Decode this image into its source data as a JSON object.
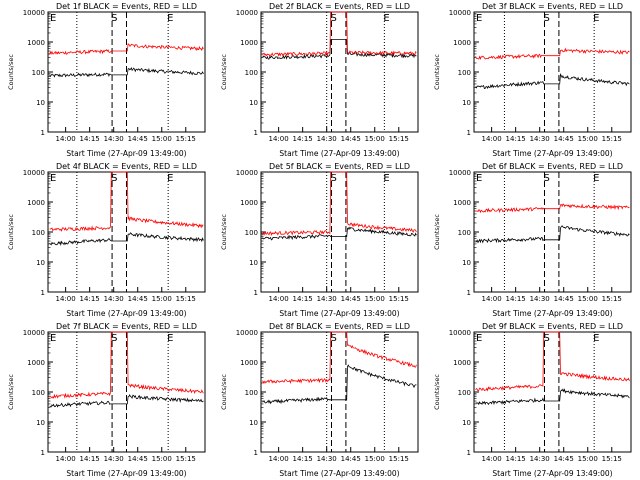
{
  "colors": {
    "events": "#000000",
    "lld": "#ff0000",
    "axis": "#000000",
    "background": "#ffffff"
  },
  "chart_data": [
    {
      "type": "line",
      "title": "Det 1f BLACK = Events, RED = LLD",
      "xlabel": "Start Time (27-Apr-09 13:49:00)",
      "ylabel": "Counts/sec",
      "xtick_labels": [
        "14:00",
        "14:15",
        "14:30",
        "14:45",
        "15:00",
        "15:15"
      ],
      "ytick_labels": [
        "1",
        "10",
        "100",
        "1000",
        "10000"
      ],
      "yscale": "log",
      "ylim": [
        1,
        10000
      ],
      "series": [
        {
          "name": "Events",
          "color": "#000000",
          "pre": [
            75,
            85
          ],
          "peak": 80,
          "post": [
            130,
            90
          ]
        },
        {
          "name": "LLD",
          "color": "#ff0000",
          "pre": [
            420,
            500
          ],
          "peak": 500,
          "post": [
            800,
            600
          ]
        }
      ],
      "markers": [
        "E",
        "S",
        "E"
      ],
      "dashed_lines": [
        "14:29",
        "14:38"
      ],
      "dotted_lines": [
        "14:07",
        "15:04"
      ]
    },
    {
      "type": "line",
      "title": "Det 2f BLACK = Events, RED = LLD",
      "xlabel": "Start Time (27-Apr-09 13:49:00)",
      "ylabel": "Counts/sec",
      "xtick_labels": [
        "14:00",
        "14:15",
        "14:30",
        "14:45",
        "15:00",
        "15:15"
      ],
      "ytick_labels": [
        "1",
        "10",
        "100",
        "1000",
        "10000"
      ],
      "yscale": "log",
      "ylim": [
        1,
        10000
      ],
      "series": [
        {
          "name": "Events",
          "color": "#000000",
          "pre": [
            300,
            350
          ],
          "peak": 1200,
          "post": [
            400,
            350
          ]
        },
        {
          "name": "LLD",
          "color": "#ff0000",
          "pre": [
            380,
            420
          ],
          "peak": 10000,
          "post": [
            450,
            420
          ]
        }
      ],
      "markers": [
        "S",
        "E"
      ],
      "dashed_lines": [
        "14:33",
        "14:42"
      ],
      "dotted_lines": [
        "14:30",
        "15:06"
      ]
    },
    {
      "type": "line",
      "title": "Det 3f BLACK = Events, RED = LLD",
      "xlabel": "Start Time (27-Apr-09 13:49:00)",
      "ylabel": "Counts/sec",
      "xtick_labels": [
        "14:00",
        "14:15",
        "14:30",
        "14:45",
        "15:00",
        "15:15"
      ],
      "ytick_labels": [
        "1",
        "10",
        "100",
        "1000",
        "10000"
      ],
      "yscale": "log",
      "ylim": [
        1,
        10000
      ],
      "series": [
        {
          "name": "Events",
          "color": "#000000",
          "pre": [
            30,
            45
          ],
          "peak": 40,
          "post": [
            80,
            40
          ]
        },
        {
          "name": "LLD",
          "color": "#ff0000",
          "pre": [
            300,
            350
          ],
          "peak": 350,
          "post": [
            550,
            450
          ]
        }
      ],
      "markers": [
        "E",
        "S",
        "E"
      ],
      "dashed_lines": [
        "14:33",
        "14:42"
      ],
      "dotted_lines": [
        "14:08",
        "15:04"
      ]
    },
    {
      "type": "line",
      "title": "Det 4f BLACK = Events, RED = LLD",
      "xlabel": "Start Time (27-Apr-09 13:49:00)",
      "ylabel": "Counts/sec",
      "xtick_labels": [
        "14:00",
        "14:15",
        "14:30",
        "14:45",
        "15:00",
        "15:15"
      ],
      "ytick_labels": [
        "1",
        "10",
        "100",
        "1000",
        "10000"
      ],
      "yscale": "log",
      "ylim": [
        1,
        10000
      ],
      "series": [
        {
          "name": "Events",
          "color": "#000000",
          "pre": [
            40,
            55
          ],
          "peak": 50,
          "post": [
            90,
            55
          ]
        },
        {
          "name": "LLD",
          "color": "#ff0000",
          "pre": [
            120,
            140
          ],
          "peak": 10000,
          "post": [
            300,
            160
          ]
        }
      ],
      "markers": [
        "E",
        "S",
        "E"
      ],
      "dashed_lines": [
        "14:29",
        "14:38"
      ],
      "dotted_lines": [
        "14:07",
        "15:04"
      ]
    },
    {
      "type": "line",
      "title": "Det 5f BLACK = Events, RED = LLD",
      "xlabel": "Start Time (27-Apr-09 13:49:00)",
      "ylabel": "Counts/sec",
      "xtick_labels": [
        "14:00",
        "14:15",
        "14:30",
        "14:45",
        "15:00",
        "15:15"
      ],
      "ytick_labels": [
        "1",
        "10",
        "100",
        "1000",
        "10000"
      ],
      "yscale": "log",
      "ylim": [
        1,
        10000
      ],
      "series": [
        {
          "name": "Events",
          "color": "#000000",
          "pre": [
            60,
            75
          ],
          "peak": 70,
          "post": [
            140,
            80
          ]
        },
        {
          "name": "LLD",
          "color": "#ff0000",
          "pre": [
            90,
            100
          ],
          "peak": 10000,
          "post": [
            200,
            110
          ]
        }
      ],
      "markers": [
        "S",
        "E"
      ],
      "dashed_lines": [
        "14:33",
        "14:42"
      ],
      "dotted_lines": [
        "14:30",
        "15:06"
      ]
    },
    {
      "type": "line",
      "title": "Det 6f BLACK = Events, RED = LLD",
      "xlabel": "Start Time (27-Apr-09 13:49:00)",
      "ylabel": "Counts/sec",
      "xtick_labels": [
        "14:00",
        "14:15",
        "14:30",
        "14:45",
        "15:00",
        "15:15"
      ],
      "ytick_labels": [
        "1",
        "10",
        "100",
        "1000",
        "10000"
      ],
      "yscale": "log",
      "ylim": [
        1,
        10000
      ],
      "series": [
        {
          "name": "Events",
          "color": "#000000",
          "pre": [
            50,
            60
          ],
          "peak": 55,
          "post": [
            160,
            80
          ]
        },
        {
          "name": "LLD",
          "color": "#ff0000",
          "pre": [
            500,
            600
          ],
          "peak": 600,
          "post": [
            800,
            650
          ]
        }
      ],
      "markers": [
        "E",
        "S",
        "E"
      ],
      "dashed_lines": [
        "14:33",
        "14:42"
      ],
      "dotted_lines": [
        "14:08",
        "15:04"
      ]
    },
    {
      "type": "line",
      "title": "Det 7f BLACK = Events, RED = LLD",
      "xlabel": "Start Time (27-Apr-09 13:49:00)",
      "ylabel": "Counts/sec",
      "xtick_labels": [
        "14:00",
        "14:15",
        "14:30",
        "14:45",
        "15:00",
        "15:15"
      ],
      "ytick_labels": [
        "1",
        "10",
        "100",
        "1000",
        "10000"
      ],
      "yscale": "log",
      "ylim": [
        1,
        10000
      ],
      "series": [
        {
          "name": "Events",
          "color": "#000000",
          "pre": [
            35,
            45
          ],
          "peak": 40,
          "post": [
            75,
            50
          ]
        },
        {
          "name": "LLD",
          "color": "#ff0000",
          "pre": [
            70,
            90
          ],
          "peak": 10000,
          "post": [
            180,
            100
          ]
        }
      ],
      "markers": [
        "E",
        "S",
        "E"
      ],
      "dashed_lines": [
        "14:29",
        "14:38"
      ],
      "dotted_lines": [
        "14:07",
        "15:04"
      ]
    },
    {
      "type": "line",
      "title": "Det 8f BLACK = Events, RED = LLD",
      "xlabel": "Start Time (27-Apr-09 13:49:00)",
      "ylabel": "Counts/sec",
      "xtick_labels": [
        "14:00",
        "14:15",
        "14:30",
        "14:45",
        "15:00",
        "15:15"
      ],
      "ytick_labels": [
        "1",
        "10",
        "100",
        "1000",
        "10000"
      ],
      "yscale": "log",
      "ylim": [
        1,
        10000
      ],
      "series": [
        {
          "name": "Events",
          "color": "#000000",
          "pre": [
            45,
            60
          ],
          "peak": 55,
          "post": [
            900,
            150
          ]
        },
        {
          "name": "LLD",
          "color": "#ff0000",
          "pre": [
            220,
            250
          ],
          "peak": 10000,
          "post": [
            4500,
            700
          ]
        }
      ],
      "markers": [
        "S",
        "E"
      ],
      "dashed_lines": [
        "14:33",
        "14:42"
      ],
      "dotted_lines": [
        "14:30",
        "15:06"
      ]
    },
    {
      "type": "line",
      "title": "Det 9f BLACK = Events, RED = LLD",
      "xlabel": "Start Time (27-Apr-09 13:49:00)",
      "ylabel": "Counts/sec",
      "xtick_labels": [
        "14:00",
        "14:15",
        "14:30",
        "14:45",
        "15:00",
        "15:15"
      ],
      "ytick_labels": [
        "1",
        "10",
        "100",
        "1000",
        "10000"
      ],
      "yscale": "log",
      "ylim": [
        1,
        10000
      ],
      "series": [
        {
          "name": "Events",
          "color": "#000000",
          "pre": [
            40,
            55
          ],
          "peak": 50,
          "post": [
            120,
            70
          ]
        },
        {
          "name": "LLD",
          "color": "#ff0000",
          "pre": [
            120,
            160
          ],
          "peak": 10000,
          "post": [
            450,
            250
          ]
        }
      ],
      "markers": [
        "E",
        "S",
        "E"
      ],
      "dashed_lines": [
        "14:33",
        "14:42"
      ],
      "dotted_lines": [
        "14:08",
        "15:04"
      ]
    }
  ]
}
